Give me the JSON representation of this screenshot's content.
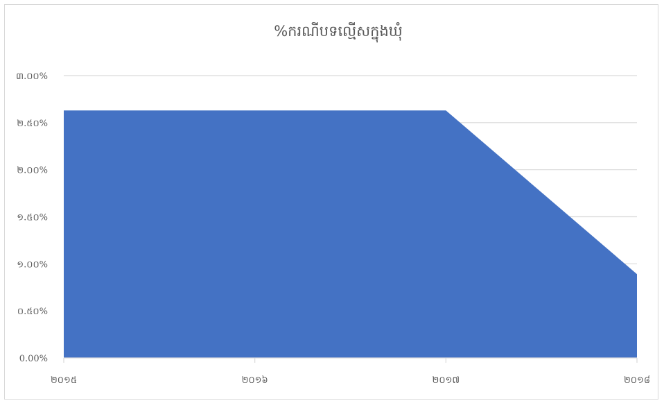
{
  "chart_data": {
    "type": "area",
    "title": "%ករណីបទល្មើសក្នុងឃុំ",
    "categories": [
      "២០១៥",
      "២០១៦",
      "២០១៧",
      "២០១៨"
    ],
    "series": [
      {
        "values": [
          0.0263,
          0.0263,
          0.0263,
          0.0089
        ]
      }
    ],
    "y_tick_labels": [
      "0.00%",
      "០.៥០%",
      "១.០០%",
      "១.៥០%",
      "២.០០%",
      "២.៥០%",
      "៣.០០%"
    ],
    "ylim": [
      0,
      0.03
    ],
    "grid": true,
    "legend": "none",
    "colors": {
      "area": "#4472c4",
      "grid": "#d9d9d9",
      "axis": "#d9d9d9",
      "text": "#595959"
    }
  }
}
